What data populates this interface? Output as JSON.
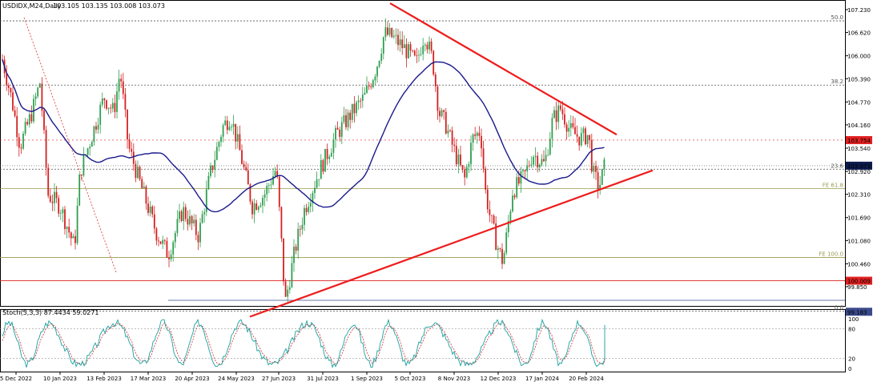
{
  "chart_data": {
    "type": "candlestick",
    "title": "USDIDX,M24,Daily",
    "ohlc": {
      "open": "103.105",
      "high": "103.135",
      "low": "103.008",
      "close": "103.073"
    },
    "y_axis": {
      "ticks": [
        "107.230",
        "106.620",
        "106.000",
        "105.390",
        "104.770",
        "104.160",
        "103.540",
        "102.920",
        "102.310",
        "101.690",
        "101.080",
        "100.460",
        "99.850"
      ],
      "ylim": [
        99.1,
        107.4
      ]
    },
    "x_axis": {
      "ticks": [
        "5 Dec 2022",
        "10 Jan 2023",
        "13 Feb 2023",
        "17 Mar 2023",
        "20 Apr 2023",
        "24 May 2023",
        "27 Jun 2023",
        "31 Jul 2023",
        "1 Sep 2023",
        "5 Oct 2023",
        "8 Nov 2023",
        "12 Dec 2023",
        "17 Jan 2024",
        "20 Feb 2024"
      ]
    },
    "fib_levels": [
      {
        "label": "50.0",
        "value": 106.93,
        "color": "#555555"
      },
      {
        "label": "38.2",
        "value": 105.22,
        "color": "#555555"
      },
      {
        "label": "23.6",
        "value": 102.98,
        "color": "#555555"
      },
      {
        "label": "FE 61.8",
        "value": 102.46,
        "color": "#9a9a50"
      },
      {
        "label": "FE 100.0",
        "value": 100.63,
        "color": "#9a9a50"
      },
      {
        "label": "0.0",
        "value": 99.2,
        "color": "#555555"
      }
    ],
    "price_tags": [
      {
        "label": "103.754",
        "value": 103.754,
        "color": "#e02020"
      },
      {
        "label": "103.073",
        "value": 103.073,
        "color": "#0c1b4e"
      },
      {
        "label": "100.009",
        "value": 100.009,
        "color": "#e02020"
      },
      {
        "label": "99.183",
        "value": 99.183,
        "color": "#3a4a8a"
      }
    ],
    "moving_average_color": "#1a1a8c",
    "trendline_color": "#ee1c1c",
    "bull_color": "#2f9e4f",
    "bear_color": "#d42020",
    "stochastic": {
      "title": "Stoch(5,3,3) 87.4434 59.0271",
      "main": 87.4434,
      "signal": 59.0271,
      "levels": [
        "100",
        "80",
        "20",
        "0"
      ],
      "main_color": "#1aa0a0",
      "signal_color": "#d43030"
    }
  }
}
